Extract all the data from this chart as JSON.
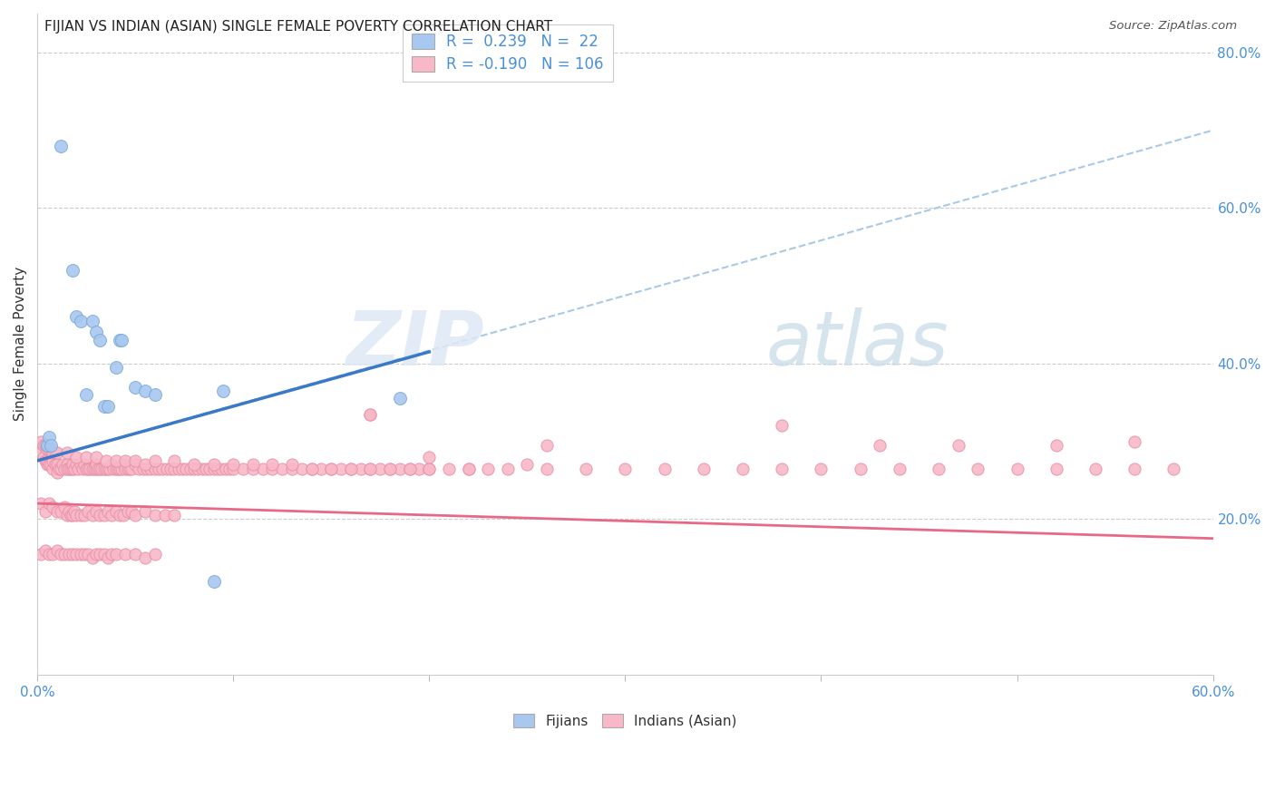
{
  "title": "FIJIAN VS INDIAN (ASIAN) SINGLE FEMALE POVERTY CORRELATION CHART",
  "source": "Source: ZipAtlas.com",
  "ylabel": "Single Female Poverty",
  "fijian_color": "#a8c8f0",
  "fijian_edge": "#7aaad8",
  "indian_color": "#f8b8c8",
  "indian_edge": "#e890a8",
  "trend_fijian_color": "#3a78c9",
  "trend_indian_color": "#e86888",
  "trend_dashed_color": "#aac8e8",
  "watermark_zip": "ZIP",
  "watermark_atlas": "atlas",
  "xlim": [
    0.0,
    0.6
  ],
  "ylim": [
    0.0,
    0.85
  ],
  "fijians_scatter": [
    [
      0.005,
      0.295
    ],
    [
      0.012,
      0.68
    ],
    [
      0.018,
      0.52
    ],
    [
      0.02,
      0.46
    ],
    [
      0.022,
      0.455
    ],
    [
      0.025,
      0.36
    ],
    [
      0.028,
      0.455
    ],
    [
      0.03,
      0.44
    ],
    [
      0.032,
      0.43
    ],
    [
      0.034,
      0.345
    ],
    [
      0.036,
      0.345
    ],
    [
      0.04,
      0.395
    ],
    [
      0.042,
      0.43
    ],
    [
      0.043,
      0.43
    ],
    [
      0.05,
      0.37
    ],
    [
      0.055,
      0.365
    ],
    [
      0.06,
      0.36
    ],
    [
      0.006,
      0.305
    ],
    [
      0.007,
      0.295
    ],
    [
      0.09,
      0.12
    ],
    [
      0.095,
      0.365
    ],
    [
      0.185,
      0.355
    ]
  ],
  "indians_scatter": [
    [
      0.002,
      0.285
    ],
    [
      0.003,
      0.28
    ],
    [
      0.004,
      0.275
    ],
    [
      0.005,
      0.27
    ],
    [
      0.005,
      0.275
    ],
    [
      0.006,
      0.28
    ],
    [
      0.006,
      0.27
    ],
    [
      0.007,
      0.28
    ],
    [
      0.007,
      0.27
    ],
    [
      0.008,
      0.265
    ],
    [
      0.008,
      0.275
    ],
    [
      0.009,
      0.27
    ],
    [
      0.01,
      0.27
    ],
    [
      0.01,
      0.26
    ],
    [
      0.011,
      0.265
    ],
    [
      0.012,
      0.265
    ],
    [
      0.013,
      0.27
    ],
    [
      0.014,
      0.265
    ],
    [
      0.015,
      0.27
    ],
    [
      0.015,
      0.265
    ],
    [
      0.016,
      0.265
    ],
    [
      0.017,
      0.265
    ],
    [
      0.018,
      0.265
    ],
    [
      0.018,
      0.27
    ],
    [
      0.019,
      0.265
    ],
    [
      0.02,
      0.27
    ],
    [
      0.021,
      0.265
    ],
    [
      0.022,
      0.27
    ],
    [
      0.023,
      0.265
    ],
    [
      0.024,
      0.27
    ],
    [
      0.025,
      0.265
    ],
    [
      0.026,
      0.265
    ],
    [
      0.027,
      0.265
    ],
    [
      0.028,
      0.265
    ],
    [
      0.029,
      0.265
    ],
    [
      0.03,
      0.265
    ],
    [
      0.03,
      0.27
    ],
    [
      0.031,
      0.265
    ],
    [
      0.032,
      0.265
    ],
    [
      0.033,
      0.265
    ],
    [
      0.034,
      0.265
    ],
    [
      0.035,
      0.265
    ],
    [
      0.036,
      0.265
    ],
    [
      0.037,
      0.265
    ],
    [
      0.038,
      0.27
    ],
    [
      0.039,
      0.265
    ],
    [
      0.04,
      0.265
    ],
    [
      0.041,
      0.265
    ],
    [
      0.042,
      0.265
    ],
    [
      0.043,
      0.265
    ],
    [
      0.044,
      0.27
    ],
    [
      0.045,
      0.265
    ],
    [
      0.046,
      0.265
    ],
    [
      0.047,
      0.265
    ],
    [
      0.048,
      0.265
    ],
    [
      0.05,
      0.27
    ],
    [
      0.052,
      0.265
    ],
    [
      0.054,
      0.265
    ],
    [
      0.056,
      0.265
    ],
    [
      0.058,
      0.265
    ],
    [
      0.06,
      0.265
    ],
    [
      0.062,
      0.265
    ],
    [
      0.064,
      0.265
    ],
    [
      0.066,
      0.265
    ],
    [
      0.068,
      0.265
    ],
    [
      0.07,
      0.265
    ],
    [
      0.072,
      0.265
    ],
    [
      0.074,
      0.265
    ],
    [
      0.076,
      0.265
    ],
    [
      0.078,
      0.265
    ],
    [
      0.08,
      0.265
    ],
    [
      0.082,
      0.265
    ],
    [
      0.084,
      0.265
    ],
    [
      0.086,
      0.265
    ],
    [
      0.088,
      0.265
    ],
    [
      0.09,
      0.265
    ],
    [
      0.092,
      0.265
    ],
    [
      0.094,
      0.265
    ],
    [
      0.096,
      0.265
    ],
    [
      0.098,
      0.265
    ],
    [
      0.1,
      0.265
    ],
    [
      0.105,
      0.265
    ],
    [
      0.11,
      0.265
    ],
    [
      0.115,
      0.265
    ],
    [
      0.12,
      0.265
    ],
    [
      0.125,
      0.265
    ],
    [
      0.13,
      0.265
    ],
    [
      0.135,
      0.265
    ],
    [
      0.14,
      0.265
    ],
    [
      0.145,
      0.265
    ],
    [
      0.15,
      0.265
    ],
    [
      0.155,
      0.265
    ],
    [
      0.16,
      0.265
    ],
    [
      0.165,
      0.265
    ],
    [
      0.17,
      0.265
    ],
    [
      0.175,
      0.265
    ],
    [
      0.18,
      0.265
    ],
    [
      0.185,
      0.265
    ],
    [
      0.19,
      0.265
    ],
    [
      0.195,
      0.265
    ],
    [
      0.2,
      0.265
    ],
    [
      0.21,
      0.265
    ],
    [
      0.22,
      0.265
    ],
    [
      0.23,
      0.265
    ],
    [
      0.002,
      0.22
    ],
    [
      0.004,
      0.21
    ],
    [
      0.006,
      0.22
    ],
    [
      0.008,
      0.215
    ],
    [
      0.01,
      0.21
    ],
    [
      0.012,
      0.21
    ],
    [
      0.014,
      0.215
    ],
    [
      0.015,
      0.205
    ],
    [
      0.016,
      0.21
    ],
    [
      0.017,
      0.205
    ],
    [
      0.018,
      0.205
    ],
    [
      0.019,
      0.21
    ],
    [
      0.02,
      0.205
    ],
    [
      0.022,
      0.205
    ],
    [
      0.024,
      0.205
    ],
    [
      0.026,
      0.21
    ],
    [
      0.028,
      0.205
    ],
    [
      0.03,
      0.21
    ],
    [
      0.032,
      0.205
    ],
    [
      0.034,
      0.205
    ],
    [
      0.036,
      0.21
    ],
    [
      0.038,
      0.205
    ],
    [
      0.04,
      0.21
    ],
    [
      0.042,
      0.205
    ],
    [
      0.044,
      0.205
    ],
    [
      0.046,
      0.21
    ],
    [
      0.048,
      0.21
    ],
    [
      0.05,
      0.205
    ],
    [
      0.055,
      0.21
    ],
    [
      0.06,
      0.205
    ],
    [
      0.065,
      0.205
    ],
    [
      0.07,
      0.205
    ],
    [
      0.002,
      0.155
    ],
    [
      0.004,
      0.16
    ],
    [
      0.006,
      0.155
    ],
    [
      0.008,
      0.155
    ],
    [
      0.01,
      0.16
    ],
    [
      0.012,
      0.155
    ],
    [
      0.014,
      0.155
    ],
    [
      0.016,
      0.155
    ],
    [
      0.018,
      0.155
    ],
    [
      0.02,
      0.155
    ],
    [
      0.022,
      0.155
    ],
    [
      0.024,
      0.155
    ],
    [
      0.026,
      0.155
    ],
    [
      0.028,
      0.15
    ],
    [
      0.03,
      0.155
    ],
    [
      0.032,
      0.155
    ],
    [
      0.034,
      0.155
    ],
    [
      0.036,
      0.15
    ],
    [
      0.038,
      0.155
    ],
    [
      0.04,
      0.155
    ],
    [
      0.045,
      0.155
    ],
    [
      0.05,
      0.155
    ],
    [
      0.055,
      0.15
    ],
    [
      0.06,
      0.155
    ],
    [
      0.002,
      0.3
    ],
    [
      0.003,
      0.295
    ],
    [
      0.004,
      0.295
    ],
    [
      0.005,
      0.29
    ],
    [
      0.006,
      0.29
    ],
    [
      0.007,
      0.29
    ],
    [
      0.008,
      0.285
    ],
    [
      0.009,
      0.285
    ],
    [
      0.01,
      0.285
    ],
    [
      0.015,
      0.285
    ],
    [
      0.02,
      0.28
    ],
    [
      0.025,
      0.28
    ],
    [
      0.03,
      0.28
    ],
    [
      0.035,
      0.275
    ],
    [
      0.04,
      0.275
    ],
    [
      0.045,
      0.275
    ],
    [
      0.05,
      0.275
    ],
    [
      0.055,
      0.27
    ],
    [
      0.06,
      0.275
    ],
    [
      0.07,
      0.275
    ],
    [
      0.08,
      0.27
    ],
    [
      0.09,
      0.27
    ],
    [
      0.1,
      0.27
    ],
    [
      0.11,
      0.27
    ],
    [
      0.12,
      0.27
    ],
    [
      0.13,
      0.27
    ],
    [
      0.14,
      0.265
    ],
    [
      0.15,
      0.265
    ],
    [
      0.16,
      0.265
    ],
    [
      0.17,
      0.265
    ],
    [
      0.18,
      0.265
    ],
    [
      0.19,
      0.265
    ],
    [
      0.2,
      0.265
    ],
    [
      0.22,
      0.265
    ],
    [
      0.24,
      0.265
    ],
    [
      0.26,
      0.265
    ],
    [
      0.17,
      0.335
    ],
    [
      0.2,
      0.28
    ],
    [
      0.25,
      0.27
    ],
    [
      0.28,
      0.265
    ],
    [
      0.26,
      0.295
    ],
    [
      0.3,
      0.265
    ],
    [
      0.32,
      0.265
    ],
    [
      0.34,
      0.265
    ],
    [
      0.36,
      0.265
    ],
    [
      0.38,
      0.265
    ],
    [
      0.4,
      0.265
    ],
    [
      0.42,
      0.265
    ],
    [
      0.44,
      0.265
    ],
    [
      0.46,
      0.265
    ],
    [
      0.48,
      0.265
    ],
    [
      0.5,
      0.265
    ],
    [
      0.52,
      0.265
    ],
    [
      0.54,
      0.265
    ],
    [
      0.56,
      0.265
    ],
    [
      0.58,
      0.265
    ],
    [
      0.17,
      0.335
    ],
    [
      0.38,
      0.32
    ],
    [
      0.43,
      0.295
    ],
    [
      0.47,
      0.295
    ],
    [
      0.52,
      0.295
    ],
    [
      0.56,
      0.3
    ]
  ],
  "fijian_trend_x": [
    0.0,
    0.2
  ],
  "fijian_trend_y": [
    0.275,
    0.415
  ],
  "indian_trend_x": [
    0.0,
    0.6
  ],
  "indian_trend_y": [
    0.22,
    0.175
  ],
  "dashed_trend_x": [
    0.0,
    0.6
  ],
  "dashed_trend_y": [
    0.275,
    0.7
  ]
}
